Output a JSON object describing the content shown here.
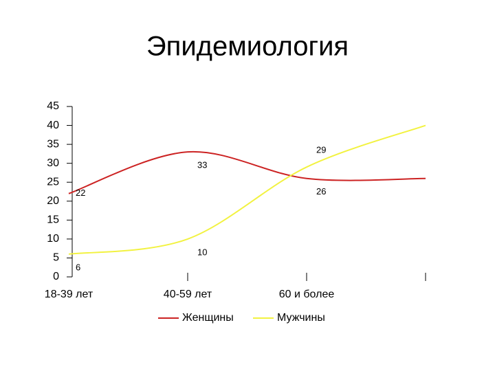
{
  "chart_data": {
    "type": "line",
    "title": "Эпидемиология",
    "categories": [
      "18-39 лет",
      "40-59 лет",
      "60 и более",
      null
    ],
    "series": [
      {
        "name": "Женщины",
        "color": "#cc2222",
        "values": [
          22,
          33,
          26,
          26
        ]
      },
      {
        "name": "Мужчины",
        "color": "#f2f240",
        "values": [
          6,
          10,
          29,
          40
        ]
      }
    ],
    "ylim": [
      0,
      45
    ],
    "yticks": [
      0,
      5,
      10,
      15,
      20,
      25,
      30,
      35,
      40,
      45
    ],
    "grid": false,
    "legend": "bottom",
    "smooth": true
  }
}
